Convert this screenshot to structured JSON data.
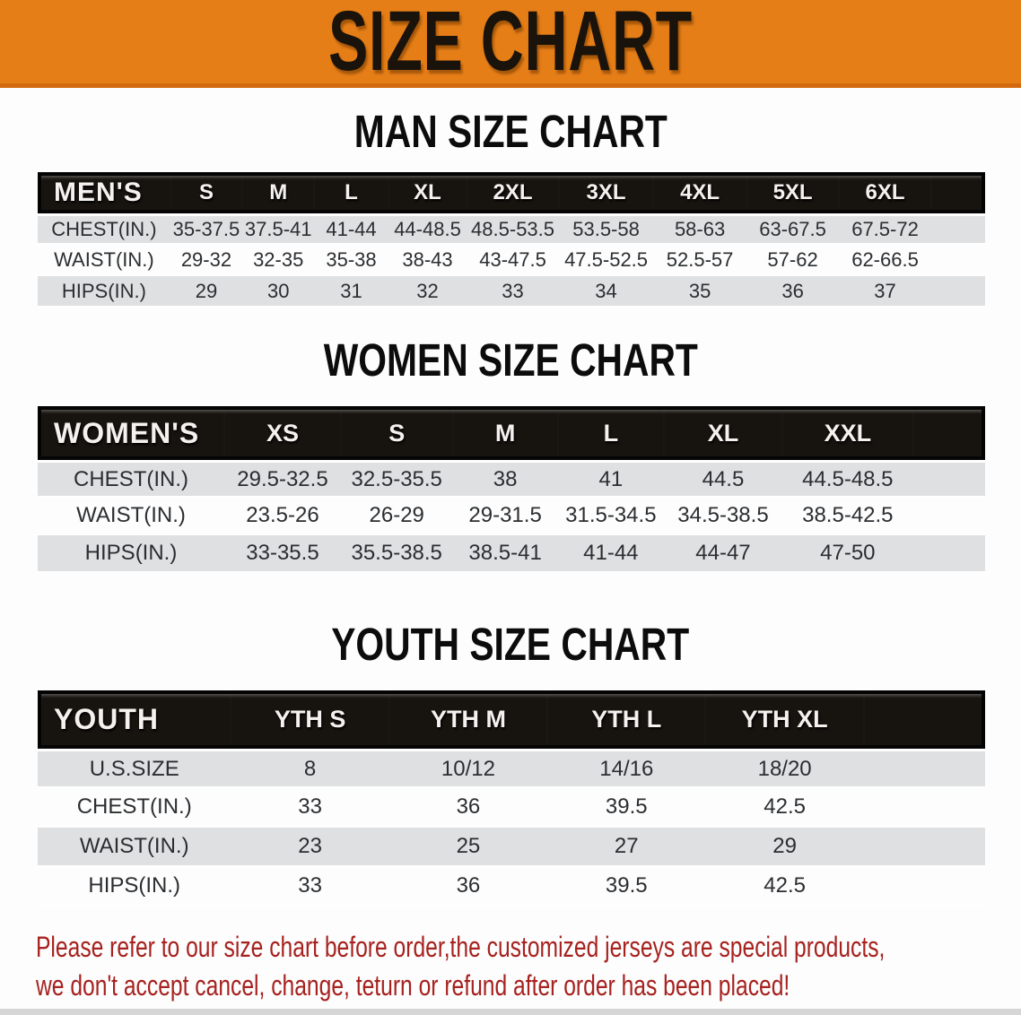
{
  "banner": {
    "title": "SIZE CHART"
  },
  "colors": {
    "banner_bg": "#e67e17",
    "banner_edge": "#d2690e",
    "header_bg": "#17130f",
    "row_stripe": "#dfe0e1",
    "disclaimer_color": "#a6221f"
  },
  "sections": [
    {
      "heading": "MAN SIZE CHART",
      "table": {
        "header_label": "MEN'S",
        "sizes": [
          "S",
          "M",
          "L",
          "XL",
          "2XL",
          "3XL",
          "4XL",
          "5XL",
          "6XL"
        ],
        "rows": [
          {
            "label": "CHEST(IN.)",
            "values": [
              "35-37.5",
              "37.5-41",
              "41-44",
              "44-48.5",
              "48.5-53.5",
              "53.5-58",
              "58-63",
              "63-67.5",
              "67.5-72"
            ]
          },
          {
            "label": "WAIST(IN.)",
            "values": [
              "29-32",
              "32-35",
              "35-38",
              "38-43",
              "43-47.5",
              "47.5-52.5",
              "52.5-57",
              "57-62",
              "62-66.5"
            ]
          },
          {
            "label": "HIPS(IN.)",
            "values": [
              "29",
              "30",
              "31",
              "32",
              "33",
              "34",
              "35",
              "36",
              "37"
            ]
          }
        ]
      }
    },
    {
      "heading": "WOMEN SIZE CHART",
      "table": {
        "header_label": "WOMEN'S",
        "sizes": [
          "XS",
          "S",
          "M",
          "L",
          "XL",
          "XXL"
        ],
        "rows": [
          {
            "label": "CHEST(IN.)",
            "values": [
              "29.5-32.5",
              "32.5-35.5",
              "38",
              "41",
              "44.5",
              "44.5-48.5"
            ]
          },
          {
            "label": "WAIST(IN.)",
            "values": [
              "23.5-26",
              "26-29",
              "29-31.5",
              "31.5-34.5",
              "34.5-38.5",
              "38.5-42.5"
            ]
          },
          {
            "label": "HIPS(IN.)",
            "values": [
              "33-35.5",
              "35.5-38.5",
              "38.5-41",
              "41-44",
              "44-47",
              "47-50"
            ]
          }
        ]
      }
    },
    {
      "heading": "YOUTH SIZE CHART",
      "table": {
        "header_label": "YOUTH",
        "sizes": [
          "YTH S",
          "YTH M",
          "YTH L",
          "YTH XL"
        ],
        "rows": [
          {
            "label": "U.S.SIZE",
            "values": [
              "8",
              "10/12",
              "14/16",
              "18/20"
            ]
          },
          {
            "label": "CHEST(IN.)",
            "values": [
              "33",
              "36",
              "39.5",
              "42.5"
            ]
          },
          {
            "label": "WAIST(IN.)",
            "values": [
              "23",
              "25",
              "27",
              "29"
            ]
          },
          {
            "label": "HIPS(IN.)",
            "values": [
              "33",
              "36",
              "39.5",
              "42.5"
            ]
          }
        ]
      }
    }
  ],
  "footer": {
    "line1": "Please refer to our size chart before order,the customized jerseys are special products,",
    "line2": "we don't accept cancel, change, teturn or refund after order has been placed!"
  }
}
